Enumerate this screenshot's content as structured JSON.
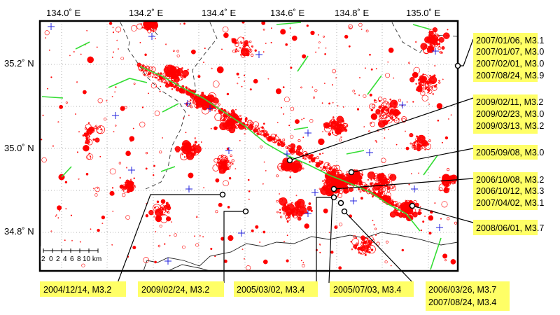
{
  "longitude_labels": [
    "134.0˚ E",
    "134.2˚ E",
    "134.4˚ E",
    "134.6˚ E",
    "134.8˚ E",
    "135.0˚ E"
  ],
  "latitude_labels": [
    "35.2˚ N",
    "35.0˚ N",
    "34.8˚ N"
  ],
  "scale_bar": {
    "ticks": [
      "2",
      "0",
      "2",
      "4",
      "6",
      "8",
      "10 km"
    ]
  },
  "colors": {
    "seismicity": "#ff0000",
    "faults": "#33dd33",
    "stations": "#2222dd",
    "callout_bg": "#ffff66",
    "frame": "#000000",
    "grid": "#9a9a9a"
  },
  "callouts": {
    "a": [
      "2007/01/06, M3.1",
      "2007/01/07, M3.0",
      "2007/02/01, M3.0",
      "2007/08/24, M3.9"
    ],
    "b": [
      "2009/02/11, M3.2",
      "2009/02/23, M3.0",
      "2009/03/13, M3.2"
    ],
    "c": [
      "2005/09/08, M3.0"
    ],
    "d": [
      "2006/10/08, M3.2",
      "2006/10/12, M3.3",
      "2007/04/02, M3.1"
    ],
    "e": [
      "2008/06/01, M3.7"
    ],
    "f": [
      "2004/12/14, M3.2"
    ],
    "g": [
      "2009/02/24, M3.2"
    ],
    "h": [
      "2005/03/02, M3.4"
    ],
    "i": [
      "2005/07/03, M3.4"
    ],
    "j": [
      "2006/03/26, M3.7",
      "2007/08/24, M3.4"
    ]
  }
}
